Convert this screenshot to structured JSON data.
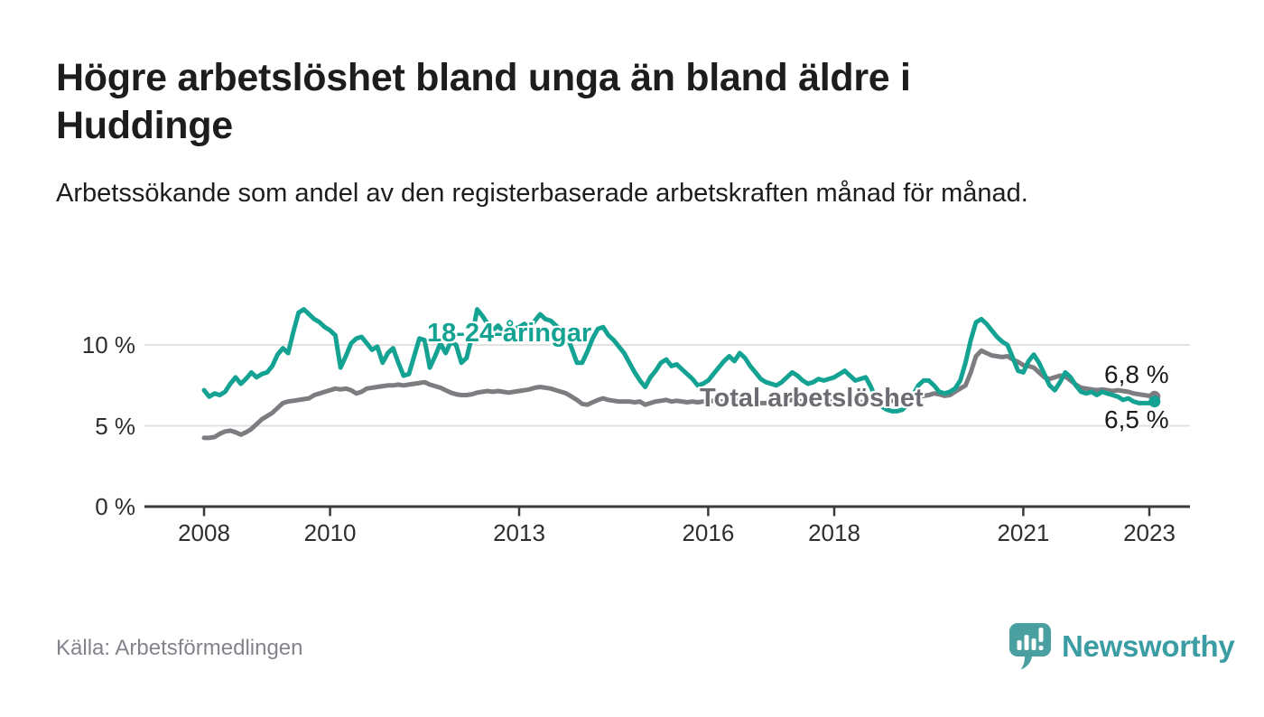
{
  "page": {
    "title": "Högre arbetslöshet bland unga än bland äldre i Huddinge",
    "subtitle": "Arbetssökande som andel av den registerbaserade arbetskraften månad för månad.",
    "source": "Källa: Arbetsförmedlingen",
    "brand": {
      "name": "Newsworthy",
      "icon": "bar-chart-speech-bubble-icon",
      "name_color": "#3b9da4",
      "icon_color": "#4a9fa0"
    }
  },
  "colors": {
    "youth_line": "#14a392",
    "total_line": "#7d7c80",
    "total_label": "#6d6c72",
    "grid": "#e3e2e0",
    "axis": "#3a3a38",
    "value_label": "#1b1b1b"
  },
  "chart_data": {
    "type": "line",
    "title": "Högre arbetslöshet bland unga än bland äldre i Huddinge",
    "unit": "%",
    "frequency": "monthly",
    "x_start": "2008-01",
    "x_end": "2023-02",
    "xlabel": "",
    "ylabel": "Arbetssökande som andel av den registerbaserade arbetskraften",
    "grid": "horizontal",
    "legend_position": "inline-annotations",
    "ylim": [
      0,
      12.8
    ],
    "x_ticks": [
      2008,
      2010,
      2013,
      2016,
      2018,
      2021,
      2023
    ],
    "y_ticks": [
      {
        "value": 0,
        "label": "0 %"
      },
      {
        "value": 5,
        "label": "5 %"
      },
      {
        "value": 10,
        "label": "10 %"
      }
    ],
    "series": [
      {
        "id": "total",
        "name": "Total arbetslöshet",
        "end_label": "6,8 %",
        "end_value": 6.8,
        "values": [
          4.25,
          4.25,
          4.3,
          4.5,
          4.65,
          4.7,
          4.6,
          4.45,
          4.6,
          4.8,
          5.1,
          5.4,
          5.6,
          5.8,
          6.1,
          6.4,
          6.5,
          6.55,
          6.6,
          6.65,
          6.7,
          6.9,
          7.0,
          7.1,
          7.2,
          7.3,
          7.25,
          7.3,
          7.2,
          7.0,
          7.1,
          7.3,
          7.35,
          7.4,
          7.45,
          7.5,
          7.5,
          7.55,
          7.5,
          7.55,
          7.6,
          7.65,
          7.7,
          7.55,
          7.45,
          7.35,
          7.2,
          7.05,
          6.95,
          6.9,
          6.9,
          6.95,
          7.05,
          7.1,
          7.15,
          7.1,
          7.15,
          7.1,
          7.05,
          7.1,
          7.15,
          7.2,
          7.25,
          7.35,
          7.4,
          7.35,
          7.3,
          7.2,
          7.1,
          7.0,
          6.8,
          6.6,
          6.35,
          6.3,
          6.45,
          6.6,
          6.7,
          6.6,
          6.55,
          6.5,
          6.5,
          6.5,
          6.45,
          6.5,
          6.3,
          6.4,
          6.5,
          6.55,
          6.6,
          6.5,
          6.55,
          6.5,
          6.45,
          6.5,
          6.45,
          6.5,
          6.5,
          6.55,
          6.5,
          6.5,
          6.55,
          6.5,
          6.6,
          6.55,
          6.5,
          6.45,
          6.4,
          6.4,
          6.45,
          6.5,
          6.5,
          6.55,
          6.6,
          6.55,
          6.5,
          6.45,
          6.5,
          6.5,
          6.55,
          6.5,
          6.5,
          6.55,
          6.5,
          6.45,
          6.4,
          6.45,
          6.5,
          6.45,
          6.4,
          6.45,
          6.5,
          6.55,
          6.6,
          6.65,
          6.7,
          6.75,
          6.8,
          6.85,
          6.9,
          7.0,
          6.95,
          6.85,
          6.9,
          7.1,
          7.3,
          7.5,
          8.3,
          9.3,
          9.65,
          9.5,
          9.35,
          9.3,
          9.25,
          9.3,
          9.1,
          8.95,
          8.75,
          8.7,
          8.6,
          8.3,
          8.0,
          7.9,
          8.0,
          8.1,
          8.05,
          7.8,
          7.55,
          7.35,
          7.3,
          7.25,
          7.2,
          7.25,
          7.2,
          7.15,
          7.2,
          7.15,
          7.1,
          7.0,
          6.95,
          6.9,
          6.85,
          6.8
        ]
      },
      {
        "id": "youth",
        "name": "18-24-åringar",
        "end_label": "6,5 %",
        "end_value": 6.5,
        "values": [
          7.2,
          6.8,
          7.0,
          6.9,
          7.1,
          7.6,
          8.0,
          7.6,
          7.9,
          8.3,
          8.0,
          8.2,
          8.3,
          8.7,
          9.4,
          9.8,
          9.5,
          10.8,
          12.0,
          12.2,
          11.9,
          11.6,
          11.4,
          11.1,
          10.9,
          10.6,
          8.6,
          9.3,
          10.1,
          10.4,
          10.5,
          10.1,
          9.7,
          9.9,
          8.9,
          9.5,
          9.8,
          8.9,
          8.1,
          8.2,
          9.3,
          10.4,
          10.3,
          8.6,
          9.3,
          10.1,
          9.5,
          10.2,
          10.0,
          8.9,
          9.2,
          10.5,
          12.2,
          11.8,
          11.3,
          10.9,
          11.2,
          10.8,
          10.9,
          11.0,
          11.1,
          11.3,
          11.0,
          11.5,
          11.9,
          11.6,
          11.5,
          11.2,
          10.9,
          10.7,
          9.8,
          8.9,
          8.9,
          9.6,
          10.4,
          11.0,
          11.1,
          10.6,
          10.3,
          9.9,
          9.5,
          8.9,
          8.3,
          7.8,
          7.4,
          8.0,
          8.4,
          8.9,
          9.1,
          8.7,
          8.8,
          8.5,
          8.2,
          7.9,
          7.5,
          7.6,
          7.8,
          8.2,
          8.6,
          9.0,
          9.3,
          9.0,
          9.5,
          9.2,
          8.7,
          8.3,
          7.9,
          7.7,
          7.6,
          7.5,
          7.7,
          8.0,
          8.3,
          8.1,
          7.8,
          7.6,
          7.7,
          7.9,
          7.8,
          7.9,
          8.0,
          8.2,
          8.4,
          8.1,
          7.8,
          7.9,
          8.0,
          7.4,
          6.6,
          6.2,
          6.0,
          5.9,
          5.9,
          6.0,
          6.3,
          6.9,
          7.5,
          7.8,
          7.8,
          7.5,
          7.1,
          7.0,
          7.1,
          7.3,
          7.8,
          8.9,
          10.3,
          11.4,
          11.6,
          11.3,
          10.9,
          10.5,
          10.2,
          10.0,
          9.2,
          8.4,
          8.3,
          9.0,
          9.4,
          8.9,
          8.2,
          7.5,
          7.2,
          7.7,
          8.3,
          8.0,
          7.5,
          7.1,
          7.0,
          7.1,
          6.9,
          7.1,
          7.0,
          6.9,
          6.8,
          6.6,
          6.7,
          6.5,
          6.4,
          6.4,
          6.4,
          6.5
        ]
      }
    ],
    "annotations": [
      {
        "series": "youth",
        "text": "18-24-åringar"
      },
      {
        "series": "total",
        "text": "Total arbetslöshet"
      }
    ]
  }
}
